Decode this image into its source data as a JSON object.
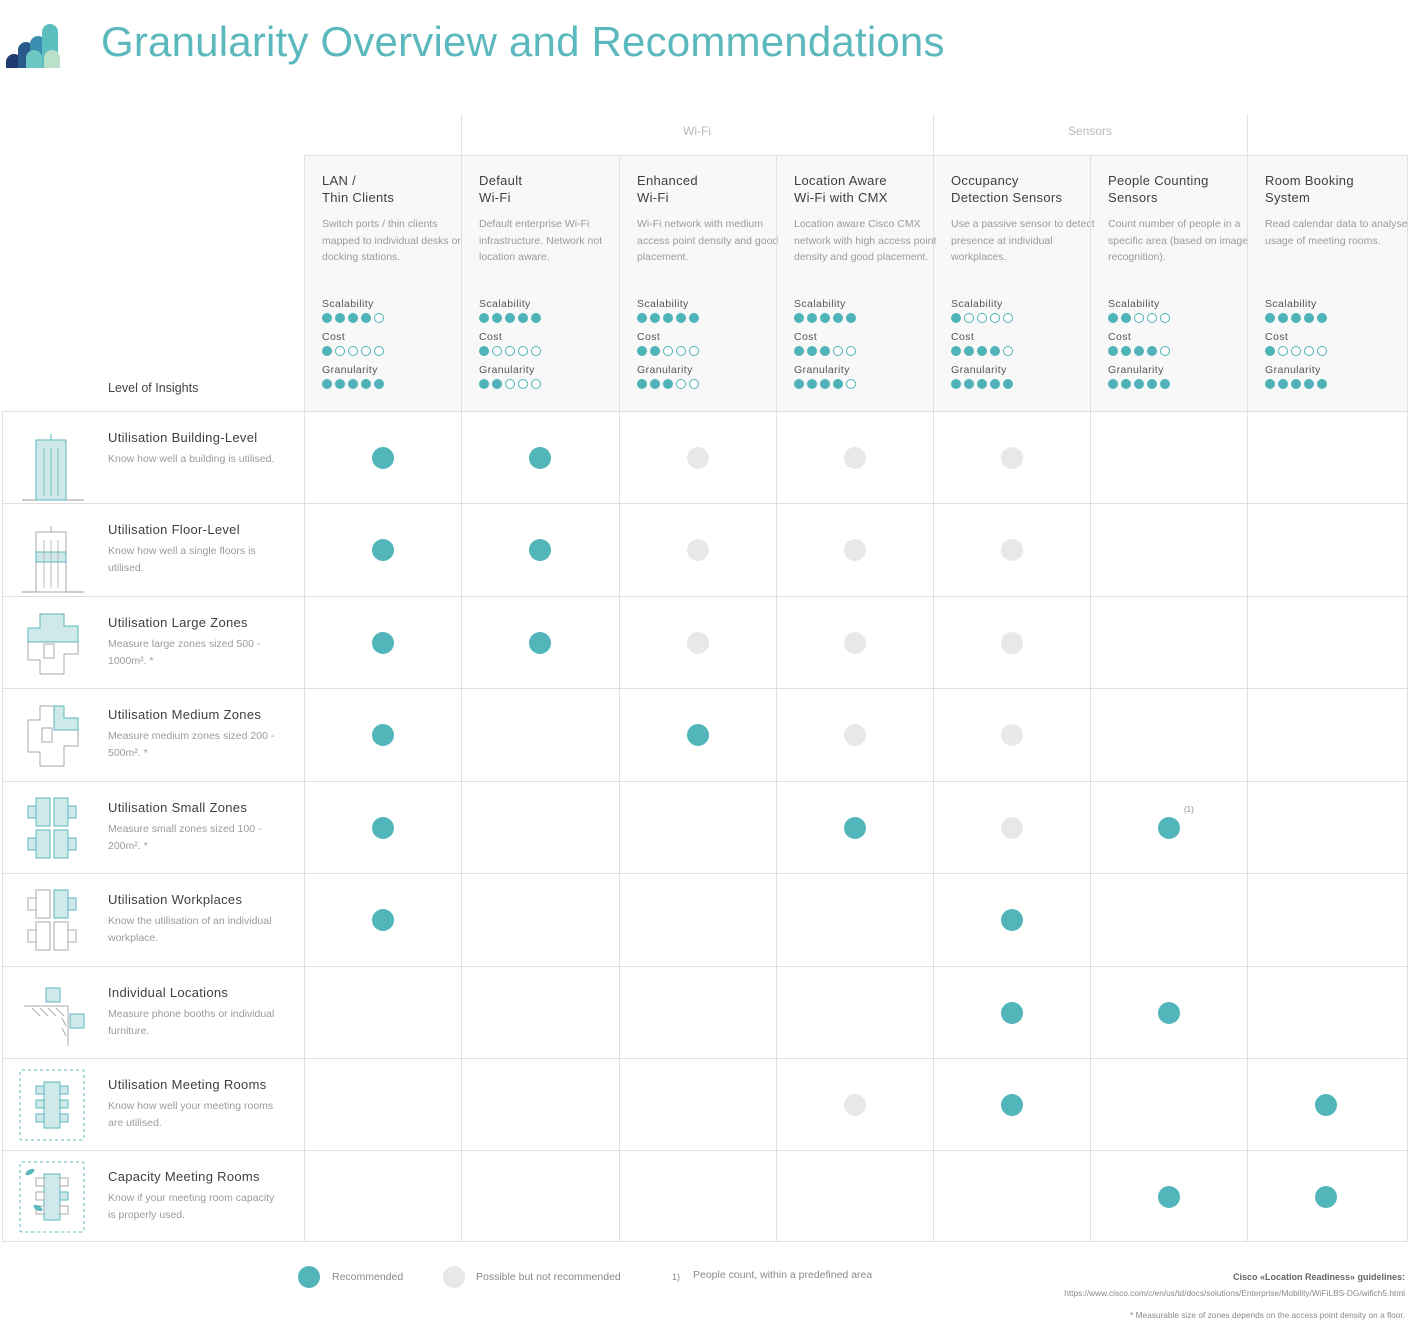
{
  "title": "Granularity Overview and Recommendations",
  "groups": [
    {
      "label": "Wi-Fi"
    },
    {
      "label": "Sensors"
    }
  ],
  "insights_label": "Level of Insights",
  "columns": [
    {
      "name_line1": "LAN /",
      "name_line2": "Thin Clients",
      "desc": "Switch ports / thin clients mapped to individual desks or docking stations.",
      "scalability": 4,
      "cost": 1,
      "granularity": 5
    },
    {
      "name_line1": "Default",
      "name_line2": "Wi-Fi",
      "desc": "Default enterprise Wi-Fi infrastructure. Network not location aware.",
      "scalability": 5,
      "cost": 1,
      "granularity": 2
    },
    {
      "name_line1": "Enhanced",
      "name_line2": "Wi-Fi",
      "desc": "Wi-Fi network with medium access point density and good placement.",
      "scalability": 5,
      "cost": 2,
      "granularity": 3
    },
    {
      "name_line1": "Location Aware",
      "name_line2": "Wi-Fi with CMX",
      "desc": "Location aware Cisco CMX network with high access point density and good placement.",
      "scalability": 5,
      "cost": 3,
      "granularity": 4
    },
    {
      "name_line1": "Occupancy",
      "name_line2": "Detection Sensors",
      "desc": "Use a passive sensor to detect presence at individual workplaces.",
      "scalability": 1,
      "cost": 4,
      "granularity": 5
    },
    {
      "name_line1": "People Counting",
      "name_line2": "Sensors",
      "desc": "Count number of people in a specific area (based on image recognition).",
      "scalability": 2,
      "cost": 4,
      "granularity": 5
    },
    {
      "name_line1": "Room Booking",
      "name_line2": "System",
      "desc": "Read calendar data to analyse usage of meeting rooms.",
      "scalability": 5,
      "cost": 1,
      "granularity": 5
    }
  ],
  "metric_labels": {
    "scalability": "Scalability",
    "cost": "Cost",
    "granularity": "Granularity"
  },
  "rows": [
    {
      "icon": "building-icon",
      "title": "Utilisation Building-Level",
      "desc": "Know how well a building is utilised.",
      "cells": [
        "R",
        "R",
        "P",
        "P",
        "P",
        "",
        ""
      ]
    },
    {
      "icon": "floor-icon",
      "title": "Utilisation Floor-Level",
      "desc": "Know how well a single floors is utilised.",
      "cells": [
        "R",
        "R",
        "P",
        "P",
        "P",
        "",
        ""
      ]
    },
    {
      "icon": "large-zone-icon",
      "title": "Utilisation Large Zones",
      "desc": "Measure large zones sized 500 - 1000m². *",
      "cells": [
        "R",
        "R",
        "P",
        "P",
        "P",
        "",
        ""
      ]
    },
    {
      "icon": "medium-zone-icon",
      "title": "Utilisation Medium Zones",
      "desc": "Measure medium zones sized 200 - 500m². *",
      "cells": [
        "R",
        "",
        "R",
        "P",
        "P",
        "",
        ""
      ]
    },
    {
      "icon": "small-zone-icon",
      "title": "Utilisation Small Zones",
      "desc": "Measure small zones sized 100 - 200m². *",
      "cells": [
        "R",
        "",
        "",
        "R",
        "P",
        "R",
        ""
      ]
    },
    {
      "icon": "workplace-icon",
      "title": "Utilisation Workplaces",
      "desc": "Know the utilisation of an individual workplace.",
      "cells": [
        "R",
        "",
        "",
        "",
        "R",
        "",
        ""
      ]
    },
    {
      "icon": "furniture-icon",
      "title": "Individual Locations",
      "desc": "Measure phone booths or individual furniture.",
      "cells": [
        "",
        "",
        "",
        "",
        "R",
        "R",
        ""
      ]
    },
    {
      "icon": "meeting-room-icon",
      "title": "Utilisation Meeting Rooms",
      "desc": "Know how well your meeting rooms are utilised.",
      "cells": [
        "",
        "",
        "",
        "P",
        "R",
        "",
        "R"
      ]
    },
    {
      "icon": "capacity-room-icon",
      "title": "Capacity Meeting Rooms",
      "desc": "Know if your meeting room capacity is properly used.",
      "cells": [
        "",
        "",
        "",
        "",
        "",
        "R",
        "R"
      ]
    }
  ],
  "note_mark": "(1)",
  "legend": {
    "recommended": "Recommended",
    "possible": "Possible but not recommended",
    "footnote_num": "1)",
    "footnote_text": "People count, within a predefined area"
  },
  "colors": {
    "accent": "#52b5b9",
    "possible": "#e8e8e8"
  },
  "footer": {
    "guidelines": "Cisco «Location Readiness» guidelines:",
    "url": "https://www.cisco.com/c/en/us/td/docs/solutions/Enterprise/Mobility/WiFiLBS-DG/wifich5.html",
    "note": "* Measurable size of zones depends on the access point density on a floor."
  }
}
